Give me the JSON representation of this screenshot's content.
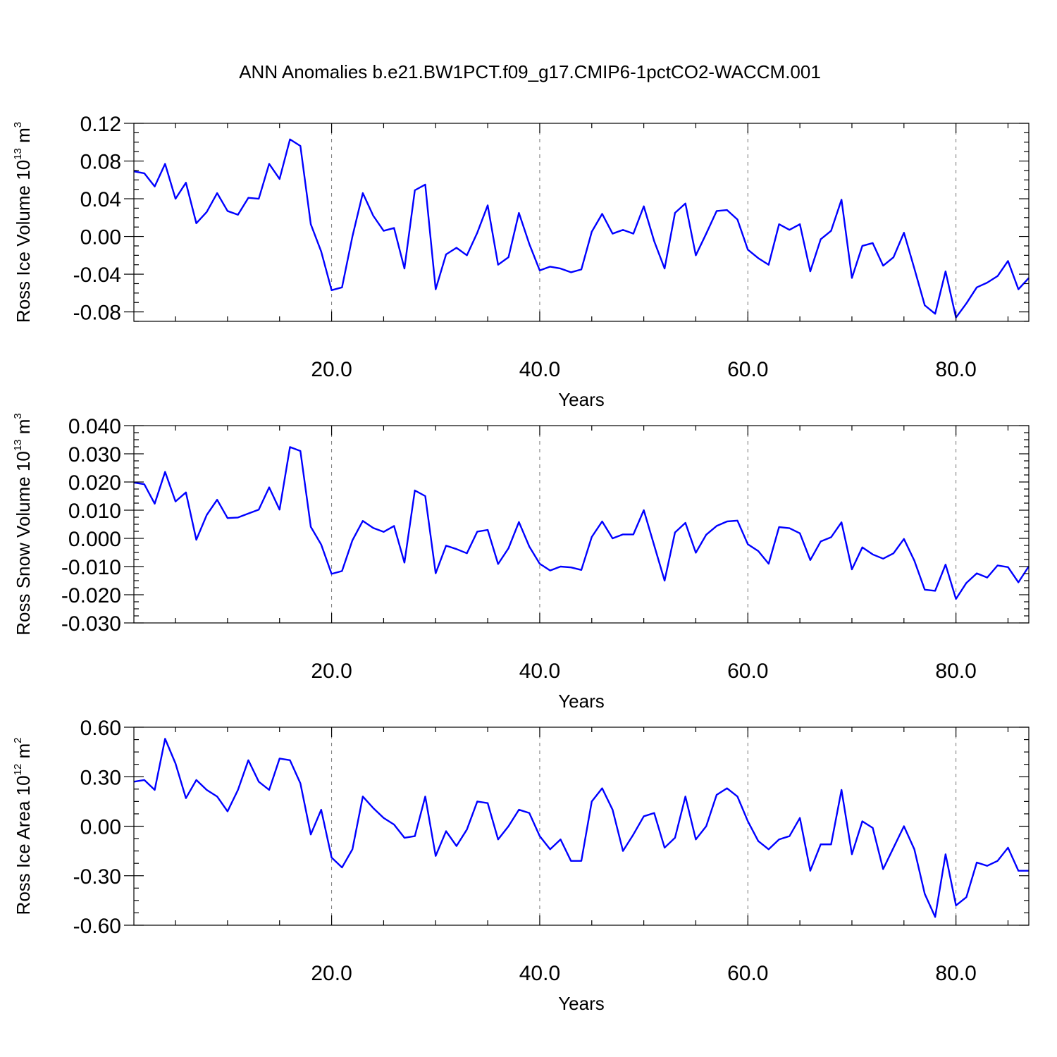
{
  "title": "ANN Anomalies b.e21.BW1PCT.f09_g17.CMIP6-1pctCO2-WACCM.001",
  "chart_data": [
    {
      "type": "line",
      "ylabel_base": "Ross Ice Volume 10",
      "ylabel_exp": "13",
      "ylabel_unit": " m",
      "ylabel_unit_exp": "3",
      "xlabel": "Years",
      "xlim": [
        1,
        87
      ],
      "ylim": [
        -0.09,
        0.12
      ],
      "yticks": [
        0.12,
        0.08,
        0.04,
        0.0,
        -0.04,
        -0.08
      ],
      "yticklabels": [
        "0.12",
        "0.08",
        "0.04",
        "0.00",
        "-0.04",
        "-0.08"
      ],
      "xticks": [
        20,
        40,
        60,
        80
      ],
      "xticklabels": [
        "20.0",
        "40.0",
        "60.0",
        "80.0"
      ],
      "grid_x": true,
      "series": [
        {
          "color": "#0000ff",
          "x": [
            1,
            2,
            3,
            4,
            5,
            6,
            7,
            8,
            9,
            10,
            11,
            12,
            13,
            14,
            15,
            16,
            17,
            18,
            19,
            20,
            21,
            22,
            23,
            24,
            25,
            26,
            27,
            28,
            29,
            30,
            31,
            32,
            33,
            34,
            35,
            36,
            37,
            38,
            39,
            40,
            41,
            42,
            43,
            44,
            45,
            46,
            47,
            48,
            49,
            50,
            51,
            52,
            53,
            54,
            55,
            56,
            57,
            58,
            59,
            60,
            61,
            62,
            63,
            64,
            65,
            66,
            67,
            68,
            69,
            70,
            71,
            72,
            73,
            74,
            75,
            76,
            77,
            78,
            79,
            80,
            81,
            82,
            83,
            84,
            85,
            86,
            87
          ],
          "values": [
            0.069,
            0.067,
            0.053,
            0.077,
            0.04,
            0.057,
            0.014,
            0.026,
            0.046,
            0.027,
            0.023,
            0.041,
            0.04,
            0.077,
            0.061,
            0.103,
            0.096,
            0.013,
            -0.016,
            -0.057,
            -0.054,
            0.0,
            0.046,
            0.022,
            0.006,
            0.009,
            -0.034,
            0.049,
            0.055,
            -0.056,
            -0.019,
            -0.012,
            -0.02,
            0.004,
            0.033,
            -0.03,
            -0.022,
            0.025,
            -0.008,
            -0.036,
            -0.032,
            -0.034,
            -0.038,
            -0.035,
            0.005,
            0.024,
            0.003,
            0.007,
            0.003,
            0.032,
            -0.005,
            -0.034,
            0.025,
            0.035,
            -0.02,
            0.003,
            0.027,
            0.028,
            0.018,
            -0.014,
            -0.023,
            -0.03,
            0.013,
            0.007,
            0.013,
            -0.037,
            -0.003,
            0.006,
            0.039,
            -0.044,
            -0.01,
            -0.007,
            -0.031,
            -0.022,
            0.004,
            -0.034,
            -0.073,
            -0.082,
            -0.037,
            -0.086,
            -0.071,
            -0.054,
            -0.049,
            -0.042,
            -0.026,
            -0.056,
            -0.044
          ]
        }
      ]
    },
    {
      "type": "line",
      "ylabel_base": "Ross Snow Volume 10",
      "ylabel_exp": "13",
      "ylabel_unit": " m",
      "ylabel_unit_exp": "3",
      "xlabel": "Years",
      "xlim": [
        1,
        87
      ],
      "ylim": [
        -0.03,
        0.04
      ],
      "yticks": [
        0.04,
        0.03,
        0.02,
        0.01,
        0.0,
        -0.01,
        -0.02,
        -0.03
      ],
      "yticklabels": [
        "0.040",
        "0.030",
        "0.020",
        "0.010",
        "0.000",
        "-0.010",
        "-0.020",
        "-0.030"
      ],
      "xticks": [
        20,
        40,
        60,
        80
      ],
      "xticklabels": [
        "20.0",
        "40.0",
        "60.0",
        "80.0"
      ],
      "grid_x": true,
      "series": [
        {
          "color": "#0000ff",
          "x": [
            1,
            2,
            3,
            4,
            5,
            6,
            7,
            8,
            9,
            10,
            11,
            12,
            13,
            14,
            15,
            16,
            17,
            18,
            19,
            20,
            21,
            22,
            23,
            24,
            25,
            26,
            27,
            28,
            29,
            30,
            31,
            32,
            33,
            34,
            35,
            36,
            37,
            38,
            39,
            40,
            41,
            42,
            43,
            44,
            45,
            46,
            47,
            48,
            49,
            50,
            51,
            52,
            53,
            54,
            55,
            56,
            57,
            58,
            59,
            60,
            61,
            62,
            63,
            64,
            65,
            66,
            67,
            68,
            69,
            70,
            71,
            72,
            73,
            74,
            75,
            76,
            77,
            78,
            79,
            80,
            81,
            82,
            83,
            84,
            85,
            86,
            87
          ],
          "values": [
            0.0198,
            0.0192,
            0.0123,
            0.0236,
            0.0131,
            0.0163,
            -0.0005,
            0.0083,
            0.0137,
            0.0072,
            0.0074,
            0.0088,
            0.0102,
            0.0181,
            0.0102,
            0.0324,
            0.031,
            0.0041,
            -0.0022,
            -0.0126,
            -0.0116,
            -0.0007,
            0.0062,
            0.0037,
            0.0023,
            0.0044,
            -0.0086,
            0.017,
            0.015,
            -0.0124,
            -0.0026,
            -0.0038,
            -0.0053,
            0.0024,
            0.003,
            -0.0091,
            -0.0035,
            0.0058,
            -0.0029,
            -0.009,
            -0.0114,
            -0.01,
            -0.0103,
            -0.0112,
            0.0005,
            0.006,
            0.0,
            0.0014,
            0.0014,
            0.01,
            -0.0025,
            -0.015,
            0.0021,
            0.0055,
            -0.0051,
            0.0013,
            0.0044,
            0.006,
            0.0063,
            -0.0021,
            -0.0045,
            -0.009,
            0.004,
            0.0036,
            0.0018,
            -0.0077,
            -0.0011,
            0.0004,
            0.0057,
            -0.011,
            -0.0032,
            -0.0057,
            -0.0072,
            -0.0053,
            -0.0002,
            -0.0079,
            -0.0182,
            -0.0186,
            -0.0093,
            -0.0215,
            -0.0158,
            -0.0124,
            -0.0139,
            -0.0096,
            -0.0102,
            -0.0156,
            -0.0099
          ]
        }
      ]
    },
    {
      "type": "line",
      "ylabel_base": "Ross Ice Area 10",
      "ylabel_exp": "12",
      "ylabel_unit": " m",
      "ylabel_unit_exp": "2",
      "xlabel": "Years",
      "xlim": [
        1,
        87
      ],
      "ylim": [
        -0.6,
        0.6
      ],
      "yticks": [
        0.6,
        0.3,
        0.0,
        -0.3,
        -0.6
      ],
      "yticklabels": [
        "0.60",
        "0.30",
        "0.00",
        "-0.30",
        "-0.60"
      ],
      "xticks": [
        20,
        40,
        60,
        80
      ],
      "xticklabels": [
        "20.0",
        "40.0",
        "60.0",
        "80.0"
      ],
      "grid_x": true,
      "series": [
        {
          "color": "#0000ff",
          "x": [
            1,
            2,
            3,
            4,
            5,
            6,
            7,
            8,
            9,
            10,
            11,
            12,
            13,
            14,
            15,
            16,
            17,
            18,
            19,
            20,
            21,
            22,
            23,
            24,
            25,
            26,
            27,
            28,
            29,
            30,
            31,
            32,
            33,
            34,
            35,
            36,
            37,
            38,
            39,
            40,
            41,
            42,
            43,
            44,
            45,
            46,
            47,
            48,
            49,
            50,
            51,
            52,
            53,
            54,
            55,
            56,
            57,
            58,
            59,
            60,
            61,
            62,
            63,
            64,
            65,
            66,
            67,
            68,
            69,
            70,
            71,
            72,
            73,
            74,
            75,
            76,
            77,
            78,
            79,
            80,
            81,
            82,
            83,
            84,
            85,
            86,
            87
          ],
          "values": [
            0.27,
            0.28,
            0.22,
            0.53,
            0.38,
            0.17,
            0.28,
            0.22,
            0.18,
            0.09,
            0.22,
            0.4,
            0.27,
            0.22,
            0.41,
            0.4,
            0.26,
            -0.05,
            0.1,
            -0.19,
            -0.25,
            -0.14,
            0.18,
            0.11,
            0.05,
            0.01,
            -0.07,
            -0.06,
            0.18,
            -0.18,
            -0.03,
            -0.12,
            -0.02,
            0.15,
            0.14,
            -0.08,
            0.0,
            0.1,
            0.08,
            -0.06,
            -0.14,
            -0.08,
            -0.21,
            -0.21,
            0.15,
            0.23,
            0.1,
            -0.15,
            -0.05,
            0.06,
            0.08,
            -0.13,
            -0.07,
            0.18,
            -0.08,
            0.0,
            0.19,
            0.23,
            0.18,
            0.03,
            -0.09,
            -0.14,
            -0.08,
            -0.06,
            0.05,
            -0.27,
            -0.11,
            -0.11,
            0.22,
            -0.17,
            0.03,
            -0.01,
            -0.26,
            -0.13,
            0.0,
            -0.14,
            -0.41,
            -0.55,
            -0.17,
            -0.48,
            -0.43,
            -0.22,
            -0.24,
            -0.21,
            -0.13,
            -0.27,
            -0.27
          ]
        }
      ]
    }
  ]
}
